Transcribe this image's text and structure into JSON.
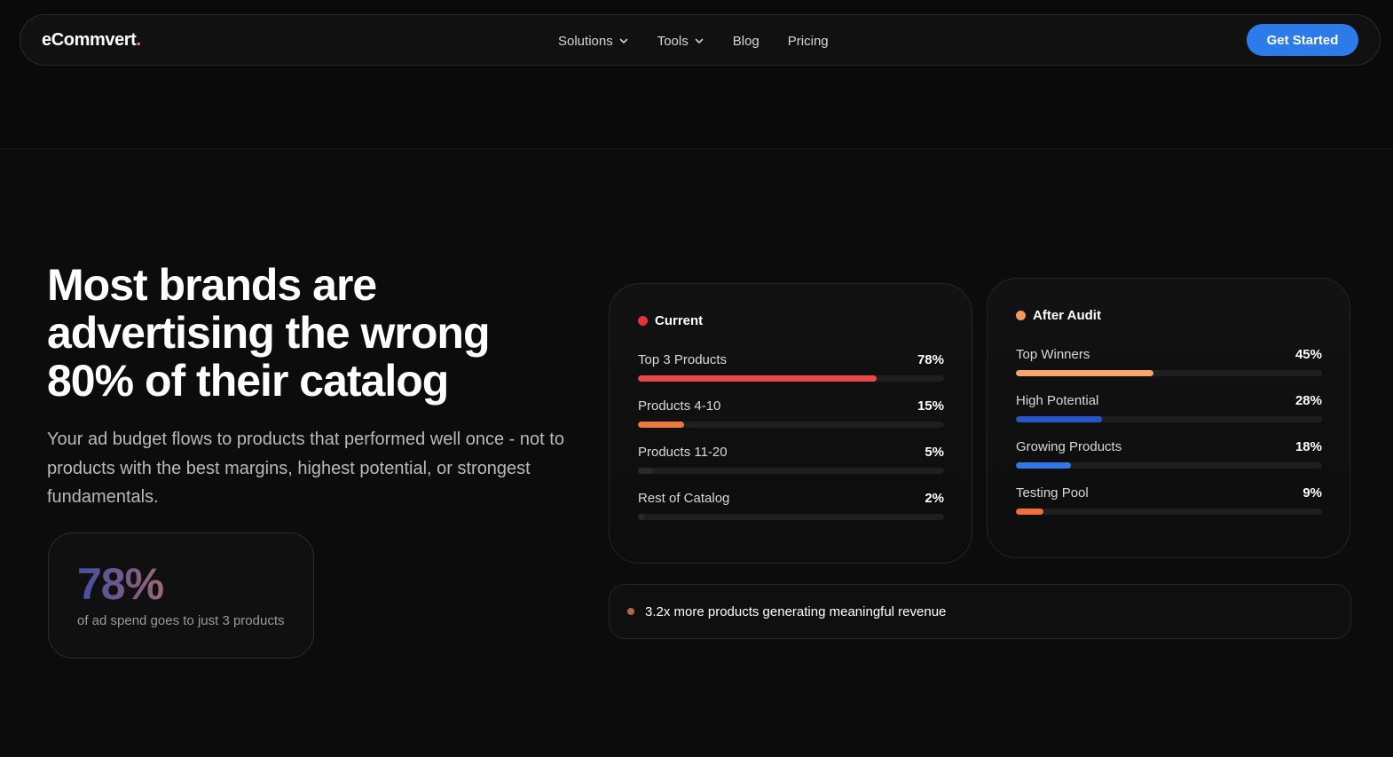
{
  "nav": {
    "logo": "eCommvert",
    "logo_dot": ".",
    "links": [
      {
        "label": "Solutions",
        "icon": "chevron-down-icon"
      },
      {
        "label": "Tools",
        "icon": "chevron-down-icon"
      },
      {
        "label": "Blog"
      },
      {
        "label": "Pricing"
      }
    ],
    "cta": "Get Started"
  },
  "hero": {
    "headline": "Most brands are advertising the wrong 80% of their catalog",
    "subtext": "Your ad budget flows to products that performed well once - not to products with the best margins, highest potential, or strongest fundamentals.",
    "stat": {
      "value": "78%",
      "label": "of ad spend goes to just 3 products"
    }
  },
  "current": {
    "title": "Current",
    "dot_color": "#e5323b",
    "rows": [
      {
        "label": "Top 3 Products",
        "pct": "78%",
        "value": 0.78,
        "color": "#e8474d"
      },
      {
        "label": "Products 4-10",
        "pct": "15%",
        "value": 0.15,
        "color": "#f0783e"
      },
      {
        "label": "Products 11-20",
        "pct": "5%",
        "value": 0.05,
        "color": "#2a2a2a"
      },
      {
        "label": "Rest of Catalog",
        "pct": "2%",
        "value": 0.02,
        "color": "#2a2a2a"
      }
    ]
  },
  "after": {
    "title": "After Audit",
    "dot_color": "#f4995f",
    "rows": [
      {
        "label": "Top Winners",
        "pct": "45%",
        "value": 0.45,
        "color": "#f7a56c"
      },
      {
        "label": "High Potential",
        "pct": "28%",
        "value": 0.28,
        "color": "#2456c9"
      },
      {
        "label": "Growing Products",
        "pct": "18%",
        "value": 0.18,
        "color": "#3377e8"
      },
      {
        "label": "Testing Pool",
        "pct": "9%",
        "value": 0.09,
        "color": "#f06e3a"
      }
    ]
  },
  "summary": {
    "text": "3.2x more products generating meaningful revenue"
  },
  "colors": {
    "accent": "#2b7bea",
    "logo_dot": "#f08a4b"
  }
}
